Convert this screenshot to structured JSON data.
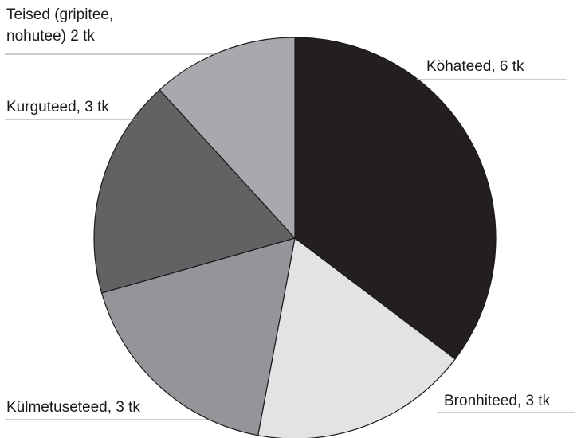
{
  "chart_data": {
    "type": "pie",
    "title": "",
    "start": "12 o'clock, clockwise",
    "slices": [
      {
        "label": "Köhateed, 6 tk",
        "value": 6,
        "color": "#231f20"
      },
      {
        "label": "Bronhiteed, 3 tk",
        "value": 3,
        "color": "#e2e3e4"
      },
      {
        "label": "Külmetuseteed, 3 tk",
        "value": 3,
        "color": "#939598"
      },
      {
        "label": "Kurguteed, 3 tk",
        "value": 3,
        "color": "#616264"
      },
      {
        "label_lines": [
          "Teised (gripitee,",
          "nohutee) 2 tk"
        ],
        "value": 2,
        "color": "#a7a9ac"
      }
    ]
  }
}
